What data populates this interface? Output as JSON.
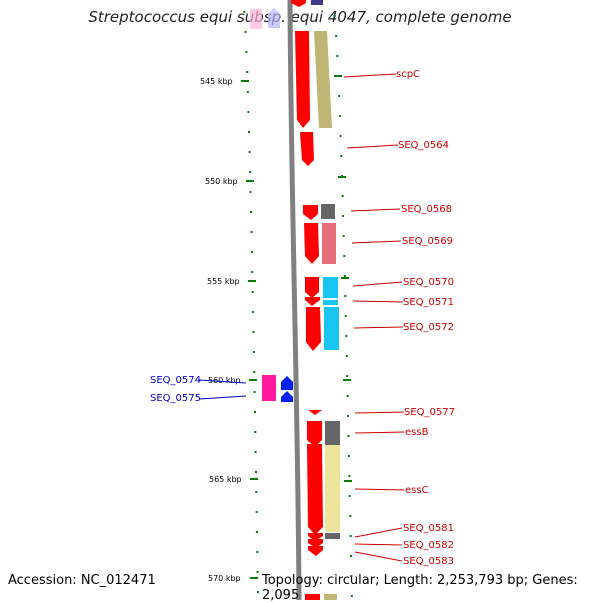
{
  "title": "Streptococcus equi subsp. equi 4047, complete genome",
  "accession": "Accession: NC_012471",
  "topology": "Topology: circular; Length: 2,253,793 bp; Genes: 2,095",
  "colors": {
    "tick": "#0a7a0a",
    "backbone": "#808080",
    "cds": "#ff0000",
    "label_red": "#cc0000",
    "label_blue": "#0000cc",
    "olive": "#bfb676",
    "khaki": "#ede49c",
    "grey": "#666666",
    "pink": "#e86f79",
    "cyan": "#18c4f0",
    "magenta": "#ff1aa0",
    "blue": "#0022ee",
    "navy": "#3b3b8c"
  },
  "scale": {
    "unit": "kbp"
  },
  "ticks": [
    {
      "label": "545 kbp",
      "pos": 545
    },
    {
      "label": "550 kbp",
      "pos": 550
    },
    {
      "label": "555 kbp",
      "pos": 555
    },
    {
      "label": "560 kbp",
      "pos": 560
    },
    {
      "label": "565 kbp",
      "pos": 565
    },
    {
      "label": "570 kbp",
      "pos": 570
    }
  ],
  "genes": [
    {
      "label": "scpC",
      "side": "right",
      "color": "label_red"
    },
    {
      "label": "SEQ_0564",
      "side": "right",
      "color": "label_red"
    },
    {
      "label": "SEQ_0568",
      "side": "right",
      "color": "label_red"
    },
    {
      "label": "SEQ_0569",
      "side": "right",
      "color": "label_red"
    },
    {
      "label": "SEQ_0570",
      "side": "right",
      "color": "label_red"
    },
    {
      "label": "SEQ_0571",
      "side": "right",
      "color": "label_red"
    },
    {
      "label": "SEQ_0572",
      "side": "right",
      "color": "label_red"
    },
    {
      "label": "SEQ_0577",
      "side": "right",
      "color": "label_red"
    },
    {
      "label": "essB",
      "side": "right",
      "color": "label_red"
    },
    {
      "label": "essC",
      "side": "right",
      "color": "label_red"
    },
    {
      "label": "SEQ_0581",
      "side": "right",
      "color": "label_red"
    },
    {
      "label": "SEQ_0582",
      "side": "right",
      "color": "label_red"
    },
    {
      "label": "SEQ_0583",
      "side": "right",
      "color": "label_red"
    },
    {
      "label": "SEQ_0574",
      "side": "left",
      "color": "label_blue"
    },
    {
      "label": "SEQ_0575",
      "side": "left",
      "color": "label_blue"
    }
  ]
}
